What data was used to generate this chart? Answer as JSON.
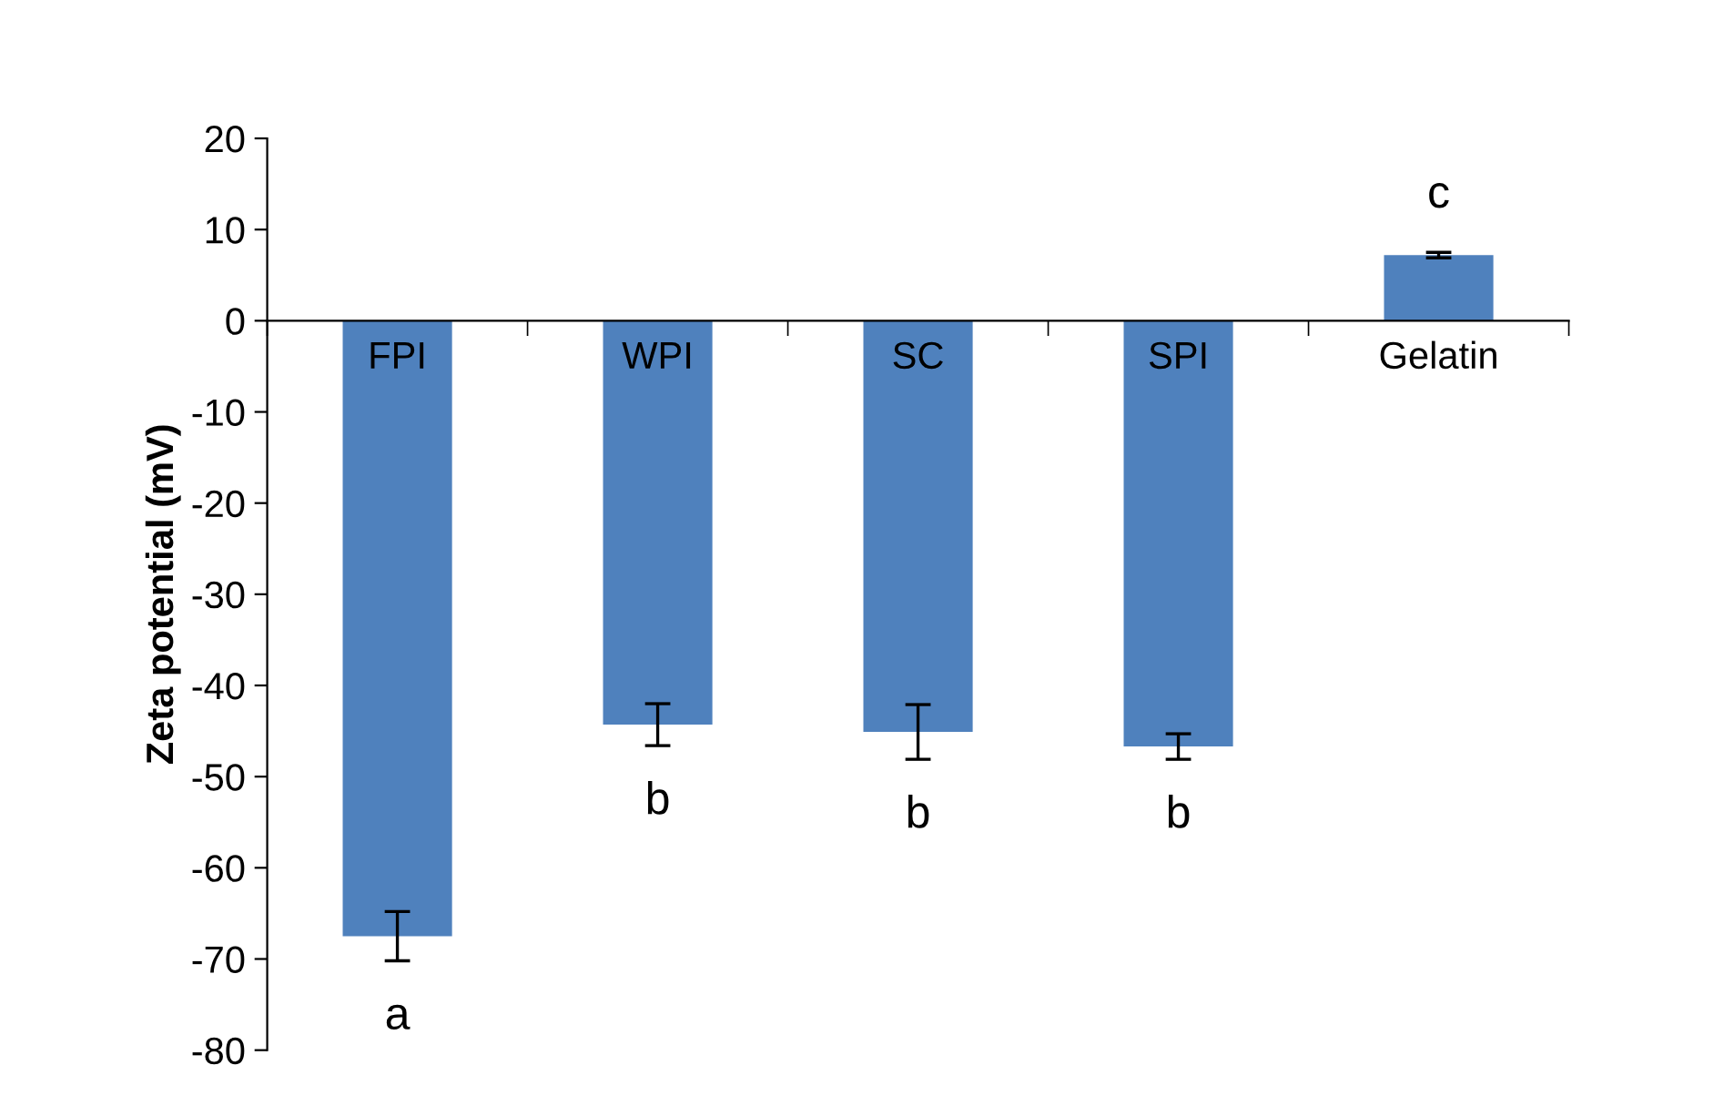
{
  "chart_data": {
    "type": "bar",
    "ylabel": "Zeta potential (mV)",
    "categories": [
      "FPI",
      "WPI",
      "SC",
      "SPI",
      "Gelatin"
    ],
    "values": [
      -67.5,
      -44.3,
      -45.1,
      -46.7,
      7.2
    ],
    "errors": [
      2.7,
      2.3,
      3.0,
      1.4,
      0.3
    ],
    "color": "#4f81bd",
    "ylim": [
      -80,
      20
    ],
    "yticks": [
      -80,
      -70,
      -60,
      -50,
      -40,
      -30,
      -20,
      -10,
      0,
      10,
      20
    ],
    "grid": false,
    "legend": false,
    "annotations": [
      "a",
      "b",
      "b",
      "b",
      "c"
    ]
  }
}
